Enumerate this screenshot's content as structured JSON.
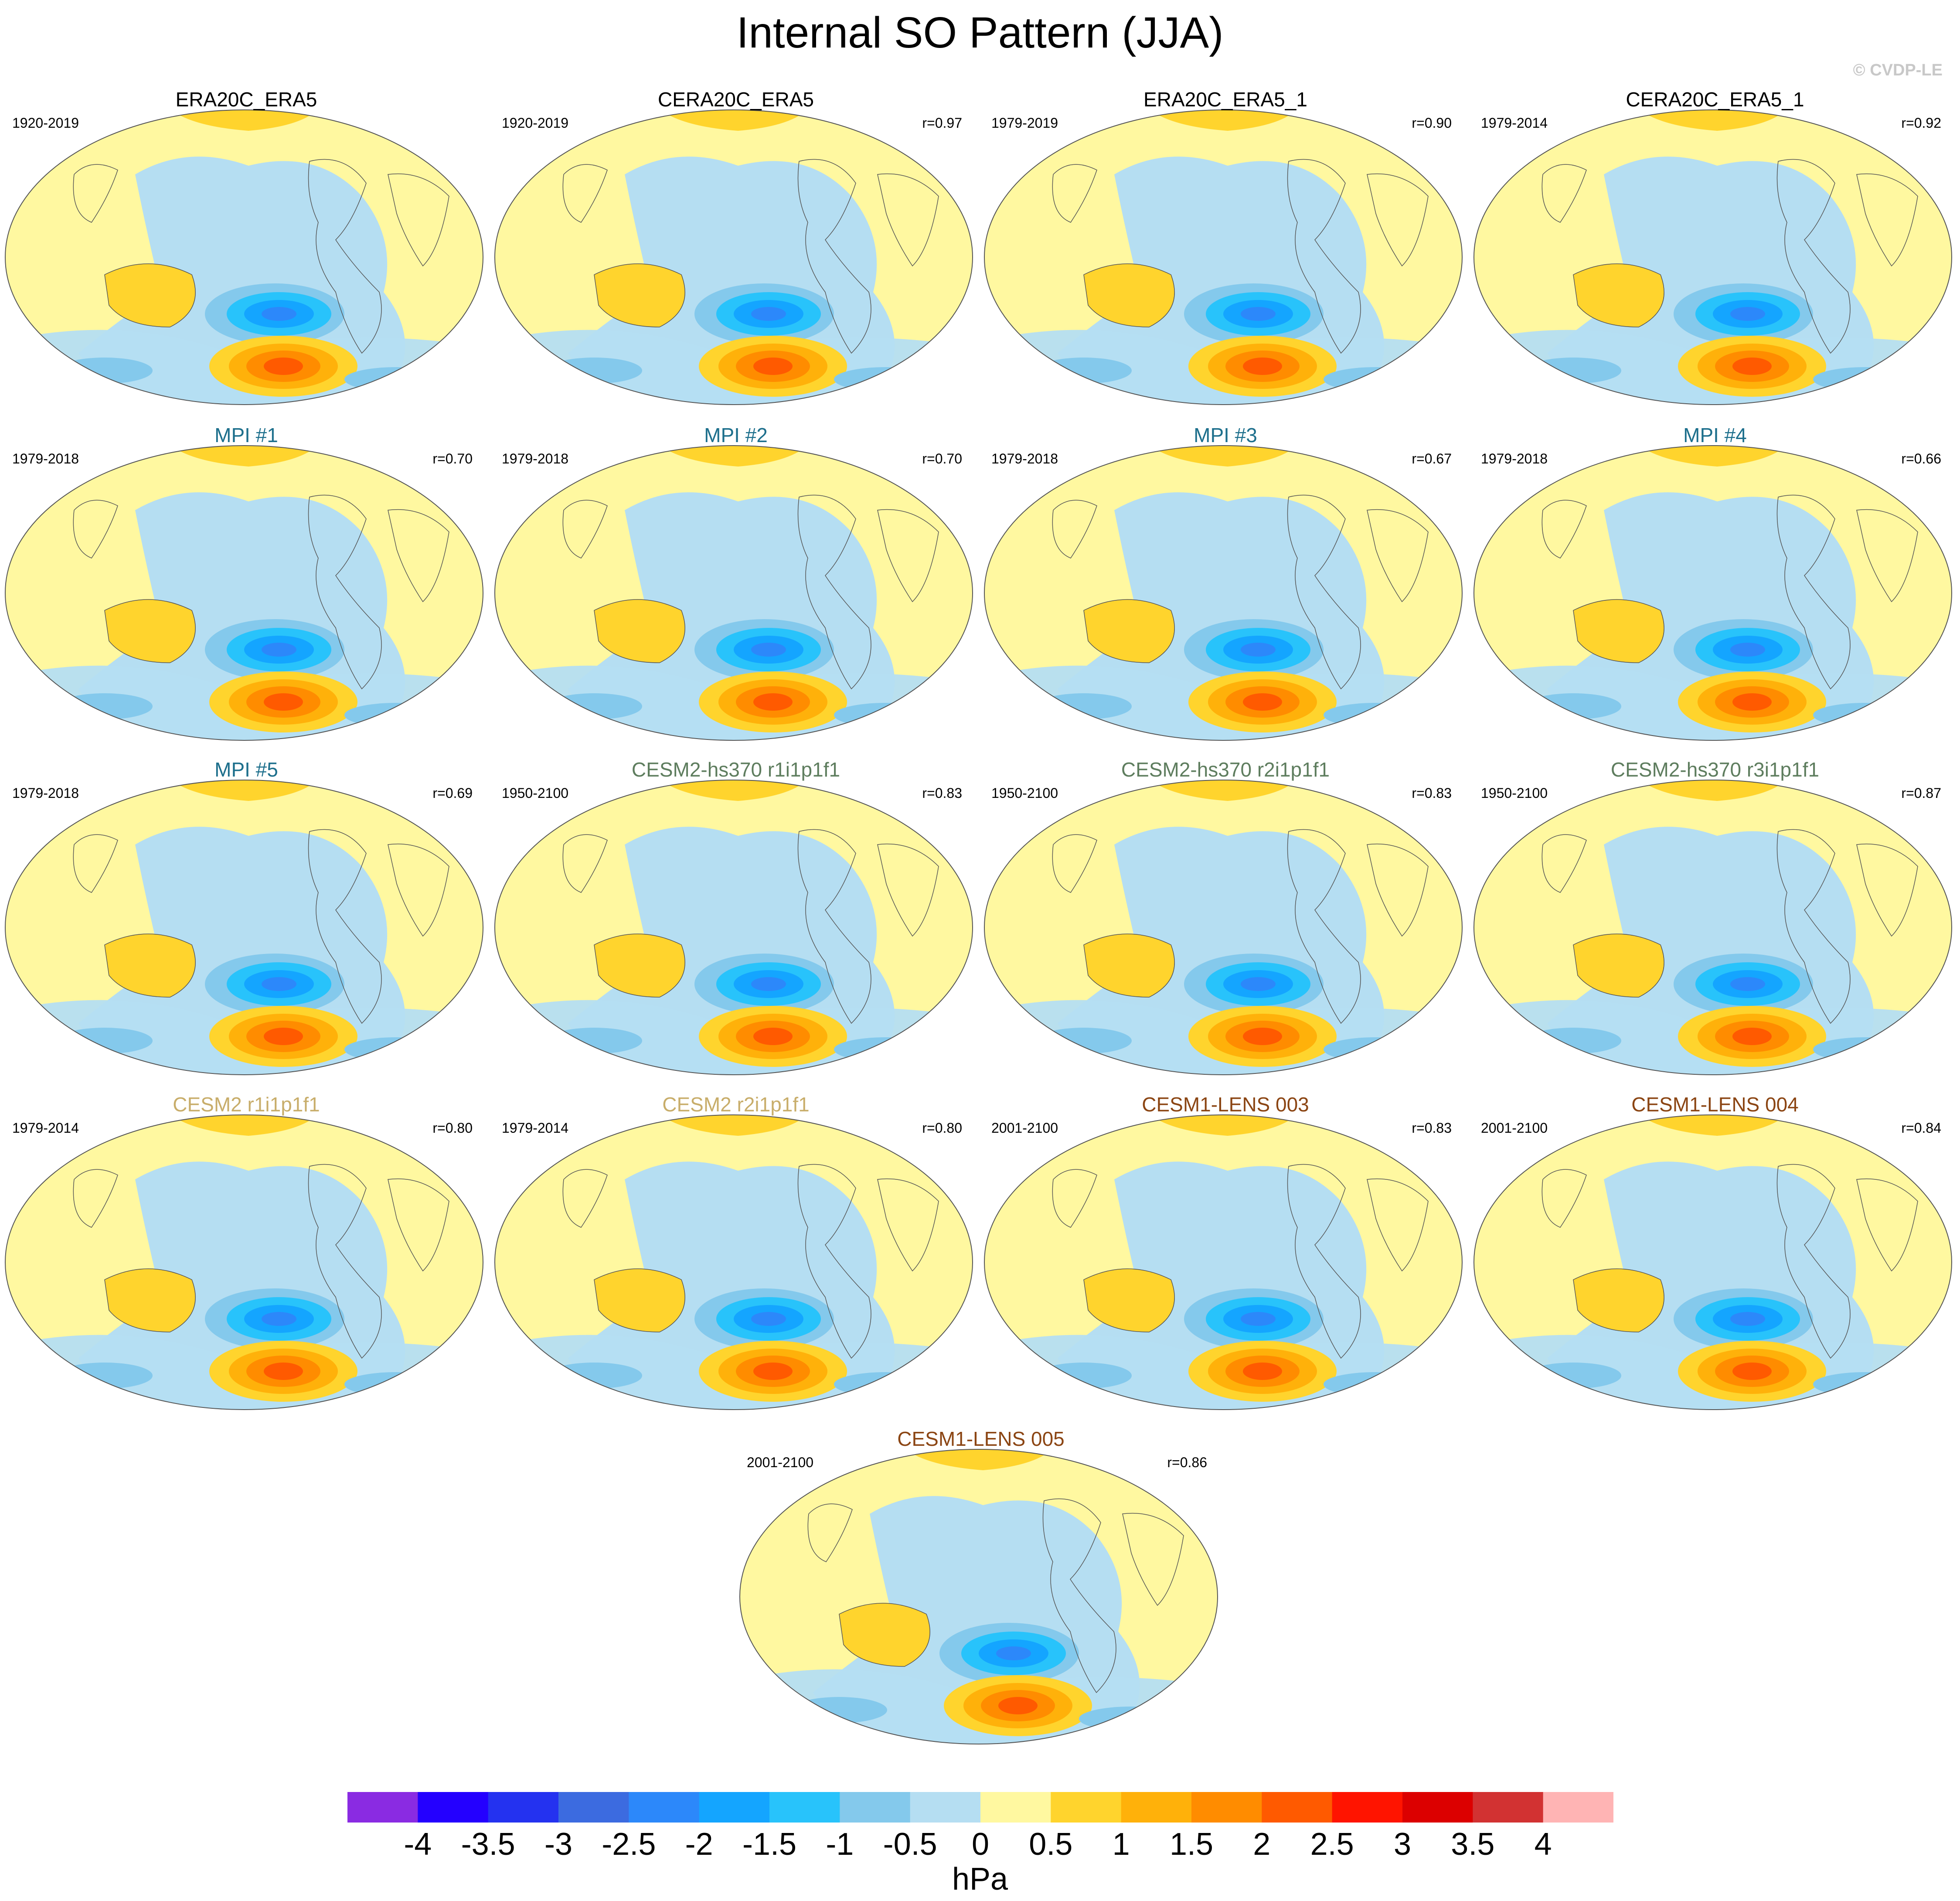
{
  "title": "Internal SO Pattern (JJA)",
  "credit": "© CVDP-LE",
  "panels": [
    {
      "title": "ERA20C_ERA5",
      "period": "1920-2019",
      "corr": "",
      "title_color": "#000000"
    },
    {
      "title": "CERA20C_ERA5",
      "period": "1920-2019",
      "corr": "r=0.97",
      "title_color": "#000000"
    },
    {
      "title": "ERA20C_ERA5_1",
      "period": "1979-2019",
      "corr": "r=0.90",
      "title_color": "#000000"
    },
    {
      "title": "CERA20C_ERA5_1",
      "period": "1979-2014",
      "corr": "r=0.92",
      "title_color": "#000000"
    },
    {
      "title": "MPI #1",
      "period": "1979-2018",
      "corr": "r=0.70",
      "title_color": "#1d6f8c"
    },
    {
      "title": "MPI #2",
      "period": "1979-2018",
      "corr": "r=0.70",
      "title_color": "#1d6f8c"
    },
    {
      "title": "MPI #3",
      "period": "1979-2018",
      "corr": "r=0.67",
      "title_color": "#1d6f8c"
    },
    {
      "title": "MPI #4",
      "period": "1979-2018",
      "corr": "r=0.66",
      "title_color": "#1d6f8c"
    },
    {
      "title": "MPI #5",
      "period": "1979-2018",
      "corr": "r=0.69",
      "title_color": "#1d6f8c"
    },
    {
      "title": "CESM2-hs370 r1i1p1f1",
      "period": "1950-2100",
      "corr": "r=0.83",
      "title_color": "#5e7d5e"
    },
    {
      "title": "CESM2-hs370 r2i1p1f1",
      "period": "1950-2100",
      "corr": "r=0.83",
      "title_color": "#5e7d5e"
    },
    {
      "title": "CESM2-hs370 r3i1p1f1",
      "period": "1950-2100",
      "corr": "r=0.87",
      "title_color": "#5e7d5e"
    },
    {
      "title": "CESM2 r1i1p1f1",
      "period": "1979-2014",
      "corr": "r=0.80",
      "title_color": "#c8ad6a"
    },
    {
      "title": "CESM2 r2i1p1f1",
      "period": "1979-2014",
      "corr": "r=0.80",
      "title_color": "#c8ad6a"
    },
    {
      "title": "CESM1-LENS 003",
      "period": "2001-2100",
      "corr": "r=0.83",
      "title_color": "#8b4513"
    },
    {
      "title": "CESM1-LENS 004",
      "period": "2001-2100",
      "corr": "r=0.84",
      "title_color": "#8b4513"
    },
    {
      "title": "CESM1-LENS 005",
      "period": "2001-2100",
      "corr": "r=0.86",
      "title_color": "#8b4513"
    }
  ],
  "colorbar": {
    "labels": [
      "-4",
      "-3.5",
      "-3",
      "-2.5",
      "-2",
      "-1.5",
      "-1",
      "-0.5",
      "0",
      "0.5",
      "1",
      "1.5",
      "2",
      "2.5",
      "3",
      "3.5",
      "4"
    ],
    "colors": [
      "#8a2be2",
      "#2400ff",
      "#2432f0",
      "#3c6be0",
      "#2c88fa",
      "#14a5ff",
      "#28c3fb",
      "#84c9ec",
      "#b5def2",
      "#fff8a0",
      "#ffd42d",
      "#ffb10a",
      "#ff8c00",
      "#ff5a00",
      "#ff1400",
      "#dc0000",
      "#d23232",
      "#ffb4b4"
    ],
    "units": "hPa"
  }
}
